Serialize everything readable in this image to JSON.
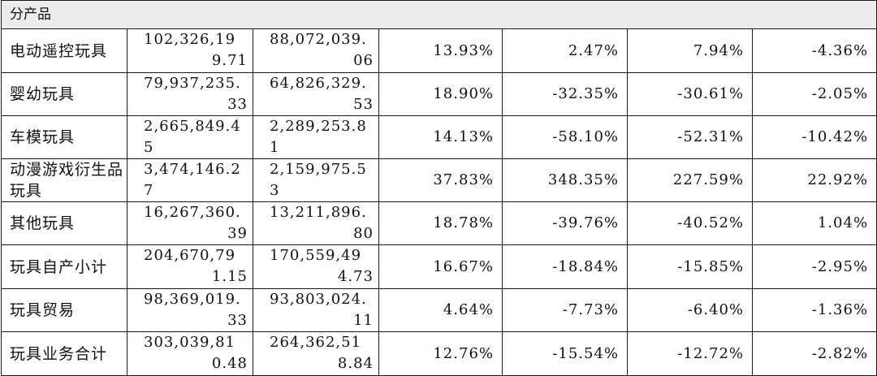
{
  "section_label": "分产品",
  "rows": [
    {
      "name": "电动遥控玩具",
      "a": "102,326,199.71",
      "b": "88,072,039.06",
      "c": "13.93%",
      "d": "2.47%",
      "e": "7.94%",
      "f": "-4.36%"
    },
    {
      "name": "婴幼玩具",
      "a": "79,937,235.33",
      "b": "64,826,329.53",
      "c": "18.90%",
      "d": "-32.35%",
      "e": "-30.61%",
      "f": "-2.05%"
    },
    {
      "name": "车模玩具",
      "a": "2,665,849.45",
      "b": "2,289,253.81",
      "c": "14.13%",
      "d": "-58.10%",
      "e": "-52.31%",
      "f": "-10.42%"
    },
    {
      "name": "动漫游戏衍生品玩具",
      "a": "3,474,146.27",
      "b": "2,159,975.53",
      "c": "37.83%",
      "d": "348.35%",
      "e": "227.59%",
      "f": "22.92%"
    },
    {
      "name": "其他玩具",
      "a": "16,267,360.39",
      "b": "13,211,896.80",
      "c": "18.78%",
      "d": "-39.76%",
      "e": "-40.52%",
      "f": "1.04%"
    },
    {
      "name": "玩具自产小计",
      "a": "204,670,791.15",
      "b": "170,559,494.73",
      "c": "16.67%",
      "d": "-18.84%",
      "e": "-15.85%",
      "f": "-2.95%"
    },
    {
      "name": "玩具贸易",
      "a": "98,369,019.33",
      "b": "93,803,024.11",
      "c": "4.64%",
      "d": "-7.73%",
      "e": "-6.40%",
      "f": "-1.36%"
    },
    {
      "name": "玩具业务合计",
      "a": "303,039,810.48",
      "b": "264,362,518.84",
      "c": "12.76%",
      "d": "-15.54%",
      "e": "-12.72%",
      "f": "-2.82%"
    }
  ]
}
